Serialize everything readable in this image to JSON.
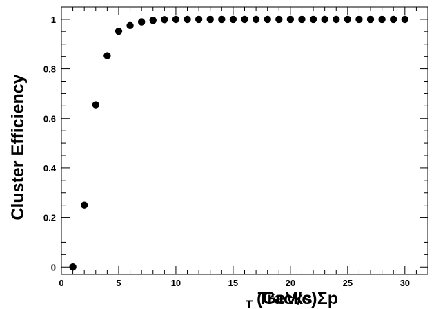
{
  "chart_data": {
    "type": "scatter",
    "title": "",
    "xlabel": "Tracks Σp",
    "xlabel_subscript": "T",
    "xlabel_unit": "(GeV/c)",
    "ylabel": "Cluster Efficiency",
    "xlim": [
      0,
      32
    ],
    "ylim": [
      -0.03,
      1.05
    ],
    "x_ticks": [
      0,
      5,
      10,
      15,
      20,
      25,
      30
    ],
    "y_ticks": [
      0,
      0.2,
      0.4,
      0.6,
      0.8,
      1
    ],
    "x_tick_labels": [
      "0",
      "5",
      "10",
      "15",
      "20",
      "25",
      "30"
    ],
    "y_tick_labels": [
      "0",
      "0.2",
      "0.4",
      "0.6",
      "0.8",
      "1"
    ],
    "grid": false,
    "marker_color": "#000000",
    "series": [
      {
        "points": [
          {
            "x": 1,
            "y": 0.0
          },
          {
            "x": 2,
            "y": 0.25
          },
          {
            "x": 3,
            "y": 0.655
          },
          {
            "x": 4,
            "y": 0.853
          },
          {
            "x": 5,
            "y": 0.952
          },
          {
            "x": 6,
            "y": 0.975
          },
          {
            "x": 7,
            "y": 0.99
          },
          {
            "x": 8,
            "y": 0.996
          },
          {
            "x": 9,
            "y": 0.999
          },
          {
            "x": 10,
            "y": 1.0
          },
          {
            "x": 11,
            "y": 1.0
          },
          {
            "x": 12,
            "y": 1.0
          },
          {
            "x": 13,
            "y": 1.0
          },
          {
            "x": 14,
            "y": 1.0
          },
          {
            "x": 15,
            "y": 1.0
          },
          {
            "x": 16,
            "y": 1.0
          },
          {
            "x": 17,
            "y": 1.0
          },
          {
            "x": 18,
            "y": 1.0
          },
          {
            "x": 19,
            "y": 1.0
          },
          {
            "x": 20,
            "y": 1.0
          },
          {
            "x": 21,
            "y": 1.0
          },
          {
            "x": 22,
            "y": 1.0
          },
          {
            "x": 23,
            "y": 1.0
          },
          {
            "x": 24,
            "y": 1.0
          },
          {
            "x": 25,
            "y": 1.0
          },
          {
            "x": 26,
            "y": 1.0
          },
          {
            "x": 27,
            "y": 1.0
          },
          {
            "x": 28,
            "y": 1.0
          },
          {
            "x": 29,
            "y": 1.0
          },
          {
            "x": 30,
            "y": 1.0
          }
        ]
      }
    ]
  }
}
